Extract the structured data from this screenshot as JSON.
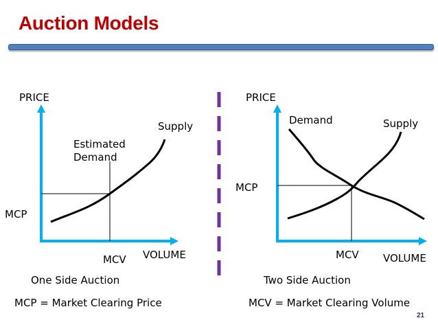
{
  "slide": {
    "title": "Auction Models",
    "page_number": "21"
  },
  "left_panel": {
    "price_label": "PRICE",
    "supply_label": "Supply",
    "demand_label_line1": "Estimated",
    "demand_label_line2": "Demand",
    "mcp_label": "MCP",
    "mcv_label": "MCV",
    "volume_label": "VOLUME",
    "caption": "One Side Auction",
    "definition": "MCP = Market Clearing Price"
  },
  "right_panel": {
    "price_label": "PRICE",
    "demand_label": "Demand",
    "supply_label": "Supply",
    "mcp_label": "MCP",
    "mcv_label": "MCV",
    "volume_label": "VOLUME",
    "caption": "Two Side Auction",
    "definition": "MCV = Market Clearing Volume"
  },
  "colors": {
    "title": "#c00000",
    "axis": "#00b0f0",
    "divider": "#7030a0",
    "bar": "#4f81bd"
  }
}
